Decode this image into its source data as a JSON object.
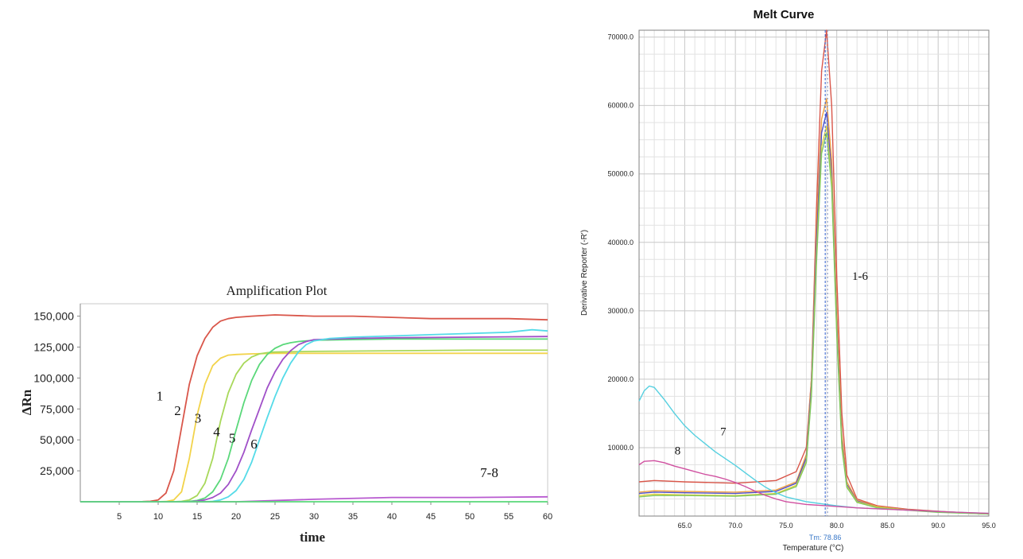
{
  "chart_data": [
    {
      "type": "line",
      "title": "Amplification Plot",
      "xlabel": "time",
      "ylabel": "ΔRn",
      "xlim": [
        0,
        60
      ],
      "ylim": [
        0,
        160000
      ],
      "x_ticks": [
        5,
        10,
        15,
        20,
        25,
        30,
        35,
        40,
        45,
        50,
        55,
        60
      ],
      "y_ticks": [
        25000,
        50000,
        75000,
        100000,
        125000,
        150000
      ],
      "y_tick_labels": [
        "25,000",
        "50,000",
        "75,000",
        "100,000",
        "125,000",
        "150,000"
      ],
      "series": [
        {
          "name": "1",
          "color": "#d9564a",
          "x": [
            0,
            5,
            8,
            9,
            10,
            11,
            12,
            13,
            14,
            15,
            16,
            17,
            18,
            19,
            20,
            22,
            25,
            30,
            35,
            40,
            45,
            50,
            55,
            60
          ],
          "y": [
            0,
            0,
            100,
            400,
            1500,
            7000,
            25000,
            60000,
            95000,
            118000,
            132000,
            141000,
            146000,
            148000,
            149000,
            150000,
            151000,
            150000,
            150000,
            149000,
            148000,
            148000,
            148000,
            147000
          ]
        },
        {
          "name": "2",
          "color": "#f2d34a",
          "x": [
            0,
            10,
            11,
            12,
            13,
            14,
            15,
            16,
            17,
            18,
            19,
            20,
            22,
            25,
            30,
            40,
            50,
            60
          ],
          "y": [
            0,
            0,
            200,
            1500,
            8000,
            35000,
            70000,
            95000,
            110000,
            116000,
            118500,
            119000,
            119500,
            120000,
            120000,
            120000,
            120000,
            120000
          ]
        },
        {
          "name": "3",
          "color": "#a8d85a",
          "x": [
            0,
            12,
            13,
            14,
            15,
            16,
            17,
            18,
            19,
            20,
            21,
            22,
            23,
            24,
            25,
            30,
            40,
            50,
            60
          ],
          "y": [
            0,
            0,
            300,
            1500,
            5000,
            15000,
            35000,
            65000,
            88000,
            103000,
            112000,
            117000,
            119500,
            120500,
            121000,
            121500,
            122000,
            122500,
            122500
          ]
        },
        {
          "name": "4",
          "color": "#5ad87a",
          "x": [
            0,
            13,
            14,
            15,
            16,
            17,
            18,
            19,
            20,
            21,
            22,
            23,
            24,
            25,
            26,
            27,
            28,
            30,
            35,
            40,
            50,
            60
          ],
          "y": [
            0,
            0,
            300,
            1000,
            3000,
            8000,
            18000,
            35000,
            58000,
            80000,
            98000,
            111000,
            119000,
            124000,
            127000,
            128500,
            129500,
            130500,
            131000,
            131500,
            131500,
            131500
          ]
        },
        {
          "name": "5",
          "color": "#a050c8",
          "x": [
            0,
            14,
            15,
            16,
            17,
            18,
            19,
            20,
            21,
            22,
            23,
            24,
            25,
            26,
            27,
            28,
            29,
            30,
            35,
            40,
            50,
            60
          ],
          "y": [
            0,
            0,
            500,
            1500,
            3500,
            7000,
            14000,
            25000,
            40000,
            58000,
            75000,
            92000,
            105000,
            115000,
            122000,
            127000,
            129500,
            131000,
            132000,
            132500,
            133000,
            133500
          ]
        },
        {
          "name": "6",
          "color": "#55dbe8",
          "x": [
            0,
            16,
            17,
            18,
            19,
            20,
            21,
            22,
            23,
            24,
            25,
            26,
            27,
            28,
            29,
            30,
            32,
            35,
            40,
            45,
            50,
            55,
            58,
            60
          ],
          "y": [
            0,
            0,
            300,
            1500,
            4000,
            9000,
            18000,
            32000,
            50000,
            68000,
            85000,
            100000,
            112000,
            121000,
            127000,
            130000,
            132000,
            133000,
            134000,
            135000,
            136000,
            137000,
            139000,
            138000
          ]
        },
        {
          "name": "7",
          "color": "#b85ad0",
          "x": [
            0,
            20,
            30,
            40,
            50,
            60
          ],
          "y": [
            0,
            0,
            2000,
            3500,
            3500,
            4000
          ]
        },
        {
          "name": "8",
          "color": "#5ad87a",
          "x": [
            0,
            10,
            20,
            30,
            40,
            50,
            60
          ],
          "y": [
            0,
            0,
            0,
            0,
            0,
            0,
            0
          ]
        }
      ],
      "annotations": [
        {
          "text": "1",
          "x": 10.2,
          "y": 82000
        },
        {
          "text": "2",
          "x": 12.5,
          "y": 70000
        },
        {
          "text": "3",
          "x": 15.1,
          "y": 64000
        },
        {
          "text": "4",
          "x": 17.5,
          "y": 53000
        },
        {
          "text": "5",
          "x": 19.5,
          "y": 48000
        },
        {
          "text": "6",
          "x": 22.3,
          "y": 43000
        },
        {
          "text": "7-8",
          "x": 52.5,
          "y": 20000
        }
      ]
    },
    {
      "type": "line",
      "title": "Melt Curve",
      "xlabel": "Temperature (°C)",
      "ylabel": "Derivative Reporter (-R')",
      "xlim": [
        60.5,
        95
      ],
      "ylim": [
        0,
        71000
      ],
      "x_ticks": [
        65.0,
        70.0,
        75.0,
        80.0,
        85.0,
        90.0,
        95.0
      ],
      "x_tick_labels": [
        "65.0",
        "70.0",
        "75.0",
        "80.0",
        "85.0",
        "90.0",
        "95.0"
      ],
      "y_ticks": [
        10000,
        20000,
        30000,
        40000,
        50000,
        60000,
        70000
      ],
      "y_tick_labels": [
        "10000.0",
        "20000.0",
        "30000.0",
        "40000.0",
        "50000.0",
        "60000.0",
        "70000.0"
      ],
      "tm_label": "Tm: 78.86",
      "tm_value": 78.86,
      "series": [
        {
          "name": "1-6 red",
          "color": "#d9564a",
          "x": [
            60.5,
            62,
            65,
            70,
            74,
            76,
            77,
            77.5,
            78,
            78.5,
            79,
            79.5,
            80,
            80.5,
            81,
            82,
            84,
            87,
            90,
            95
          ],
          "y": [
            5000,
            5200,
            5000,
            4800,
            5200,
            6500,
            10000,
            20000,
            45000,
            65000,
            71000,
            60000,
            35000,
            15000,
            6000,
            2500,
            1500,
            1000,
            700,
            300
          ]
        },
        {
          "name": "1-6 orange",
          "color": "#f0a040",
          "x": [
            60.5,
            62,
            65,
            70,
            74,
            76,
            77,
            77.5,
            78,
            78.5,
            79,
            79.5,
            80,
            80.5,
            81,
            82,
            84,
            87,
            90,
            95
          ],
          "y": [
            3500,
            3700,
            3600,
            3500,
            3800,
            5000,
            9000,
            20000,
            42000,
            58000,
            61000,
            52000,
            30000,
            12000,
            5000,
            2300,
            1400,
            900,
            600,
            300
          ]
        },
        {
          "name": "1-6 blue",
          "color": "#5050c8",
          "x": [
            60.5,
            62,
            65,
            70,
            74,
            76,
            77,
            77.5,
            78,
            78.5,
            79,
            79.5,
            80,
            80.5,
            81,
            82,
            84,
            87,
            90,
            95
          ],
          "y": [
            3300,
            3500,
            3400,
            3300,
            3600,
            4800,
            8500,
            19000,
            40000,
            56000,
            59000,
            50000,
            28000,
            11000,
            4600,
            2200,
            1300,
            900,
            600,
            300
          ]
        },
        {
          "name": "1-6 yellow",
          "color": "#e0d040",
          "x": [
            60.5,
            62,
            65,
            70,
            74,
            76,
            77,
            77.5,
            78,
            78.5,
            79,
            79.5,
            80,
            80.5,
            81,
            82,
            84,
            87,
            90,
            95
          ],
          "y": [
            3000,
            3200,
            3100,
            3000,
            3300,
            4500,
            8000,
            18000,
            38000,
            54000,
            57000,
            49000,
            27000,
            10500,
            4400,
            2100,
            1300,
            900,
            600,
            300
          ]
        },
        {
          "name": "1-6 green",
          "color": "#80c860",
          "x": [
            60.5,
            62,
            65,
            70,
            74,
            76,
            77,
            77.5,
            78,
            78.5,
            79,
            79.5,
            80,
            80.5,
            81,
            82,
            84,
            87,
            90,
            95
          ],
          "y": [
            2800,
            3000,
            3000,
            2900,
            3200,
            4300,
            7800,
            17500,
            37000,
            53000,
            56000,
            48000,
            26500,
            10000,
            4200,
            2000,
            1200,
            850,
            550,
            300
          ]
        },
        {
          "name": "7",
          "color": "#55d0e0",
          "x": [
            60.5,
            61,
            61.5,
            62,
            63,
            64,
            65,
            66,
            67,
            68,
            69,
            70,
            71,
            72,
            73,
            74,
            75,
            77,
            79,
            80,
            82,
            85,
            88,
            91,
            95
          ],
          "y": [
            16800,
            18300,
            19000,
            18800,
            17000,
            15000,
            13200,
            11800,
            10600,
            9400,
            8400,
            7400,
            6300,
            5200,
            4200,
            3400,
            2800,
            2100,
            1700,
            1500,
            1200,
            1000,
            800,
            600,
            400
          ]
        },
        {
          "name": "8",
          "color": "#d050a0",
          "x": [
            60.5,
            61,
            62,
            63,
            64,
            65,
            66,
            67,
            68,
            69,
            70,
            71,
            72,
            73,
            74,
            75,
            77,
            79,
            82,
            85,
            88,
            91,
            95
          ],
          "y": [
            7500,
            8000,
            8100,
            7800,
            7300,
            6900,
            6500,
            6100,
            5800,
            5400,
            4900,
            4300,
            3600,
            3000,
            2500,
            2100,
            1700,
            1500,
            1200,
            1000,
            800,
            600,
            400
          ]
        }
      ],
      "annotations": [
        {
          "text": "1-6",
          "x": 82.3,
          "y": 34500
        },
        {
          "text": "7",
          "x": 68.8,
          "y": 11800
        },
        {
          "text": "8",
          "x": 64.3,
          "y": 9000
        }
      ]
    }
  ]
}
